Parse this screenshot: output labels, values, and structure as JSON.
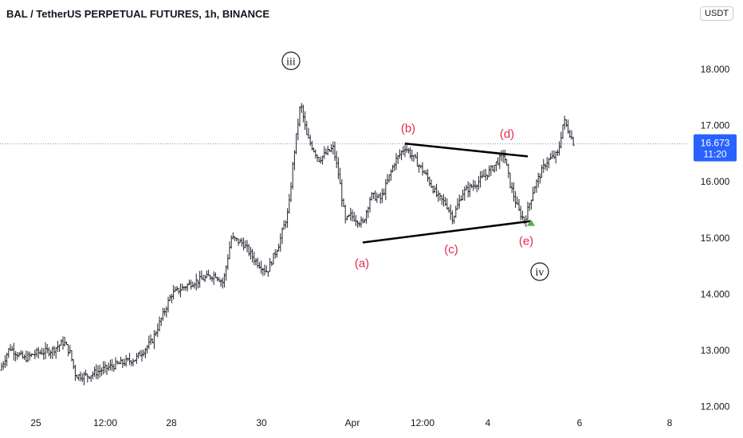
{
  "header": {
    "title": "BAL / TetherUS PERPETUAL FUTURES, 1h, BINANCE",
    "currency": "USDT"
  },
  "price_axis": {
    "ticks": [
      "18.000",
      "17.000",
      "16.000",
      "15.000",
      "14.000",
      "13.000",
      "12.000"
    ],
    "last_price": "16.673",
    "countdown": "11:20"
  },
  "time_axis": {
    "ticks": [
      "25",
      "12:00",
      "28",
      "30",
      "Apr",
      "12:00",
      "4",
      "6",
      "8"
    ]
  },
  "annotations": {
    "wave_iii": "iii",
    "wave_iv": "iv",
    "a": "(a)",
    "b": "(b)",
    "c": "(c)",
    "d": "(d)",
    "e": "(e)"
  },
  "colors": {
    "bars": "#1f2329",
    "wave_labels": "#e2294f",
    "price_line": "#7b8cde",
    "price_badge": "#2962ff",
    "marker": "#4caf50",
    "axis_text": "#131722"
  },
  "chart_data": {
    "type": "ohlc",
    "series": "BAL/USDT perpetual, 1h",
    "y_range": [
      11.85,
      18.55
    ],
    "x_categories": [
      "25",
      "12:00",
      "28",
      "30",
      "Apr",
      "12:00",
      "4",
      "6",
      "8"
    ],
    "path": [
      [
        0,
        12.65
      ],
      [
        12,
        13.05
      ],
      [
        30,
        12.85
      ],
      [
        45,
        12.95
      ],
      [
        65,
        13.0
      ],
      [
        80,
        13.15
      ],
      [
        88,
        12.95
      ],
      [
        95,
        12.55
      ],
      [
        110,
        12.55
      ],
      [
        140,
        12.72
      ],
      [
        170,
        12.85
      ],
      [
        190,
        13.15
      ],
      [
        205,
        13.65
      ],
      [
        215,
        14.0
      ],
      [
        240,
        14.2
      ],
      [
        270,
        14.35
      ],
      [
        280,
        14.2
      ],
      [
        290,
        15.0
      ],
      [
        305,
        14.9
      ],
      [
        320,
        14.6
      ],
      [
        335,
        14.4
      ],
      [
        350,
        14.9
      ],
      [
        362,
        15.5
      ],
      [
        368,
        16.4
      ],
      [
        377,
        17.4
      ],
      [
        385,
        16.8
      ],
      [
        400,
        16.4
      ],
      [
        418,
        16.6
      ],
      [
        425,
        16.1
      ],
      [
        433,
        15.3
      ],
      [
        440,
        15.4
      ],
      [
        455,
        15.25
      ],
      [
        465,
        15.75
      ],
      [
        478,
        15.7
      ],
      [
        495,
        16.35
      ],
      [
        508,
        16.62
      ],
      [
        520,
        16.4
      ],
      [
        535,
        16.1
      ],
      [
        548,
        15.75
      ],
      [
        560,
        15.6
      ],
      [
        568,
        15.35
      ],
      [
        580,
        15.8
      ],
      [
        600,
        16.0
      ],
      [
        615,
        16.2
      ],
      [
        632,
        16.5
      ],
      [
        640,
        15.95
      ],
      [
        650,
        15.5
      ],
      [
        658,
        15.3
      ],
      [
        670,
        15.9
      ],
      [
        685,
        16.35
      ],
      [
        700,
        16.5
      ],
      [
        707,
        17.1
      ],
      [
        715,
        16.85
      ],
      [
        720,
        16.67
      ]
    ],
    "last_price": 16.673,
    "triangle": {
      "upper": [
        [
          508,
          16.68
        ],
        [
          662,
          16.45
        ]
      ],
      "lower": [
        [
          455,
          14.92
        ],
        [
          666,
          15.3
        ]
      ]
    },
    "wave_labels": [
      {
        "label": "iii",
        "at": [
          365,
          18.15
        ],
        "style": "circled"
      },
      {
        "label": "(a)",
        "at": [
          454,
          14.55
        ]
      },
      {
        "label": "(b)",
        "at": [
          512,
          16.95
        ]
      },
      {
        "label": "(c)",
        "at": [
          566,
          14.8
        ]
      },
      {
        "label": "(d)",
        "at": [
          636,
          16.85
        ]
      },
      {
        "label": "(e)",
        "at": [
          660,
          14.95
        ]
      },
      {
        "label": "iv",
        "at": [
          677,
          14.4
        ],
        "style": "circled"
      }
    ]
  }
}
